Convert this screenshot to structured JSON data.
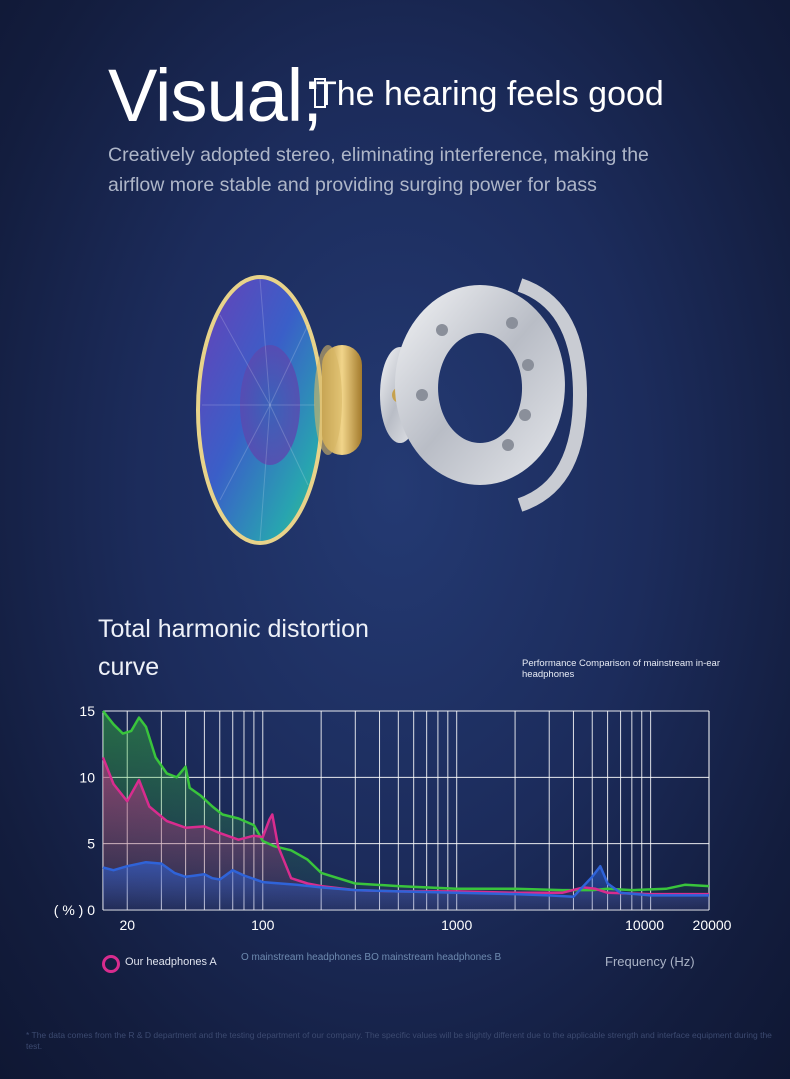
{
  "hero": {
    "title_main": "Visual;",
    "title_sub": "The hearing feels good",
    "description": "Creatively adopted stereo, eliminating interference, making the airflow more stable and providing surging power for bass"
  },
  "section": {
    "title": "Total harmonic distortion curve",
    "performance_note": "Performance Comparison of mainstream in-ear headphones"
  },
  "legend": {
    "series_a": "Our headphones A",
    "others": "O mainstream headphones BO mainstream headphones B"
  },
  "colors": {
    "background": "#1c2c5c",
    "series_a": "#d82c8e",
    "series_b_green": "#39c43c",
    "series_b_blue": "#2f63d8",
    "grid": "#ffffff"
  },
  "chart_data": {
    "type": "line",
    "title": "Total harmonic distortion curve",
    "xlabel": "Frequency (Hz)",
    "ylabel": "( % )",
    "x_scale": "log",
    "xlim": [
      15,
      20000
    ],
    "ylim": [
      0,
      15
    ],
    "x_ticks": [
      20,
      100,
      1000,
      10000,
      20000
    ],
    "x_tick_labels": [
      "20",
      "100",
      "1000",
      "10000",
      "20000"
    ],
    "y_ticks": [
      0,
      5,
      10,
      15
    ],
    "y_tick_labels": [
      "( % ) 0",
      "5",
      "10",
      "15"
    ],
    "grid": true,
    "series": [
      {
        "name": "Our headphones A",
        "color": "#d82c8e",
        "points": [
          [
            15,
            11.5
          ],
          [
            17,
            9.5
          ],
          [
            20,
            8.2
          ],
          [
            23,
            9.8
          ],
          [
            26,
            7.8
          ],
          [
            32,
            6.7
          ],
          [
            40,
            6.2
          ],
          [
            50,
            6.3
          ],
          [
            60,
            5.8
          ],
          [
            75,
            5.3
          ],
          [
            90,
            5.6
          ],
          [
            100,
            5.5
          ],
          [
            108,
            6.8
          ],
          [
            112,
            7.2
          ],
          [
            120,
            4.8
          ],
          [
            140,
            2.4
          ],
          [
            170,
            2.0
          ],
          [
            200,
            1.8
          ],
          [
            300,
            1.5
          ],
          [
            500,
            1.4
          ],
          [
            1000,
            1.4
          ],
          [
            2000,
            1.3
          ],
          [
            3500,
            1.3
          ],
          [
            4500,
            1.7
          ],
          [
            5200,
            1.6
          ],
          [
            6000,
            1.3
          ],
          [
            10000,
            1.2
          ],
          [
            20000,
            1.2
          ]
        ]
      },
      {
        "name": "O mainstream headphones B",
        "color": "#39c43c",
        "points": [
          [
            15,
            15
          ],
          [
            17,
            14.0
          ],
          [
            19,
            13.3
          ],
          [
            21,
            13.5
          ],
          [
            23,
            14.5
          ],
          [
            25,
            13.8
          ],
          [
            28,
            11.5
          ],
          [
            32,
            10.3
          ],
          [
            36,
            10.0
          ],
          [
            40,
            10.8
          ],
          [
            42,
            9.2
          ],
          [
            48,
            8.6
          ],
          [
            55,
            7.8
          ],
          [
            62,
            7.2
          ],
          [
            75,
            6.9
          ],
          [
            90,
            6.4
          ],
          [
            100,
            5.2
          ],
          [
            115,
            4.8
          ],
          [
            140,
            4.5
          ],
          [
            170,
            3.8
          ],
          [
            200,
            2.8
          ],
          [
            300,
            2.0
          ],
          [
            500,
            1.8
          ],
          [
            1000,
            1.6
          ],
          [
            2000,
            1.6
          ],
          [
            3500,
            1.5
          ],
          [
            5000,
            1.5
          ],
          [
            6000,
            1.6
          ],
          [
            8000,
            1.5
          ],
          [
            12000,
            1.6
          ],
          [
            15000,
            1.9
          ],
          [
            20000,
            1.8
          ]
        ]
      },
      {
        "name": "O mainstream headphones B",
        "color": "#2f63d8",
        "points": [
          [
            15,
            3.2
          ],
          [
            17,
            3.0
          ],
          [
            20,
            3.3
          ],
          [
            25,
            3.6
          ],
          [
            30,
            3.5
          ],
          [
            35,
            2.8
          ],
          [
            40,
            2.5
          ],
          [
            45,
            2.6
          ],
          [
            50,
            2.7
          ],
          [
            55,
            2.4
          ],
          [
            60,
            2.3
          ],
          [
            70,
            3.0
          ],
          [
            80,
            2.6
          ],
          [
            100,
            2.1
          ],
          [
            150,
            1.9
          ],
          [
            200,
            1.7
          ],
          [
            300,
            1.5
          ],
          [
            500,
            1.4
          ],
          [
            1000,
            1.3
          ],
          [
            2000,
            1.2
          ],
          [
            3000,
            1.1
          ],
          [
            4000,
            1.0
          ],
          [
            5000,
            2.5
          ],
          [
            5500,
            3.3
          ],
          [
            6000,
            2.0
          ],
          [
            7000,
            1.3
          ],
          [
            10000,
            1.1
          ],
          [
            20000,
            1.1
          ]
        ]
      }
    ]
  },
  "footnote": "* The data comes from the R & D department and the testing department of our company. The specific values will be slightly different due to the applicable strength and interface equipment during the test."
}
